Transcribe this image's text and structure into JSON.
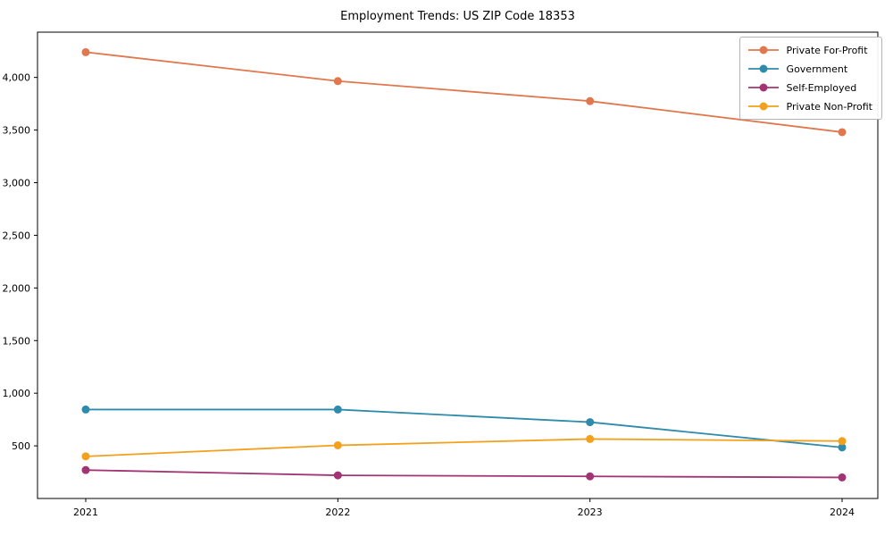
{
  "figure": {
    "title": "Employment Trends: US ZIP Code 18353"
  },
  "chart_data": {
    "type": "line",
    "title": "Employment Trends: US ZIP Code 18353",
    "xlabel": "",
    "ylabel": "",
    "categories": [
      "2021",
      "2022",
      "2023",
      "2024"
    ],
    "series": [
      {
        "name": "Private For-Profit",
        "color": "#e0774d",
        "values": [
          4240,
          3965,
          3775,
          3480
        ]
      },
      {
        "name": "Government",
        "color": "#2e8bab",
        "values": [
          845,
          845,
          725,
          485
        ]
      },
      {
        "name": "Self-Employed",
        "color": "#a23474",
        "values": [
          270,
          220,
          210,
          200
        ]
      },
      {
        "name": "Private Non-Profit",
        "color": "#f3a01d",
        "values": [
          400,
          505,
          565,
          545
        ]
      }
    ],
    "yticks": [
      500,
      1000,
      1500,
      2000,
      2500,
      3000,
      3500,
      4000
    ],
    "ylim": [
      0,
      4430
    ],
    "grid": false,
    "marker": "circle",
    "legend_position": "upper right"
  },
  "style": {
    "axis_color": "#000000",
    "legend_border_color": "#b3b3b3",
    "background_color": "#ffffff",
    "text_color": "#000000"
  }
}
